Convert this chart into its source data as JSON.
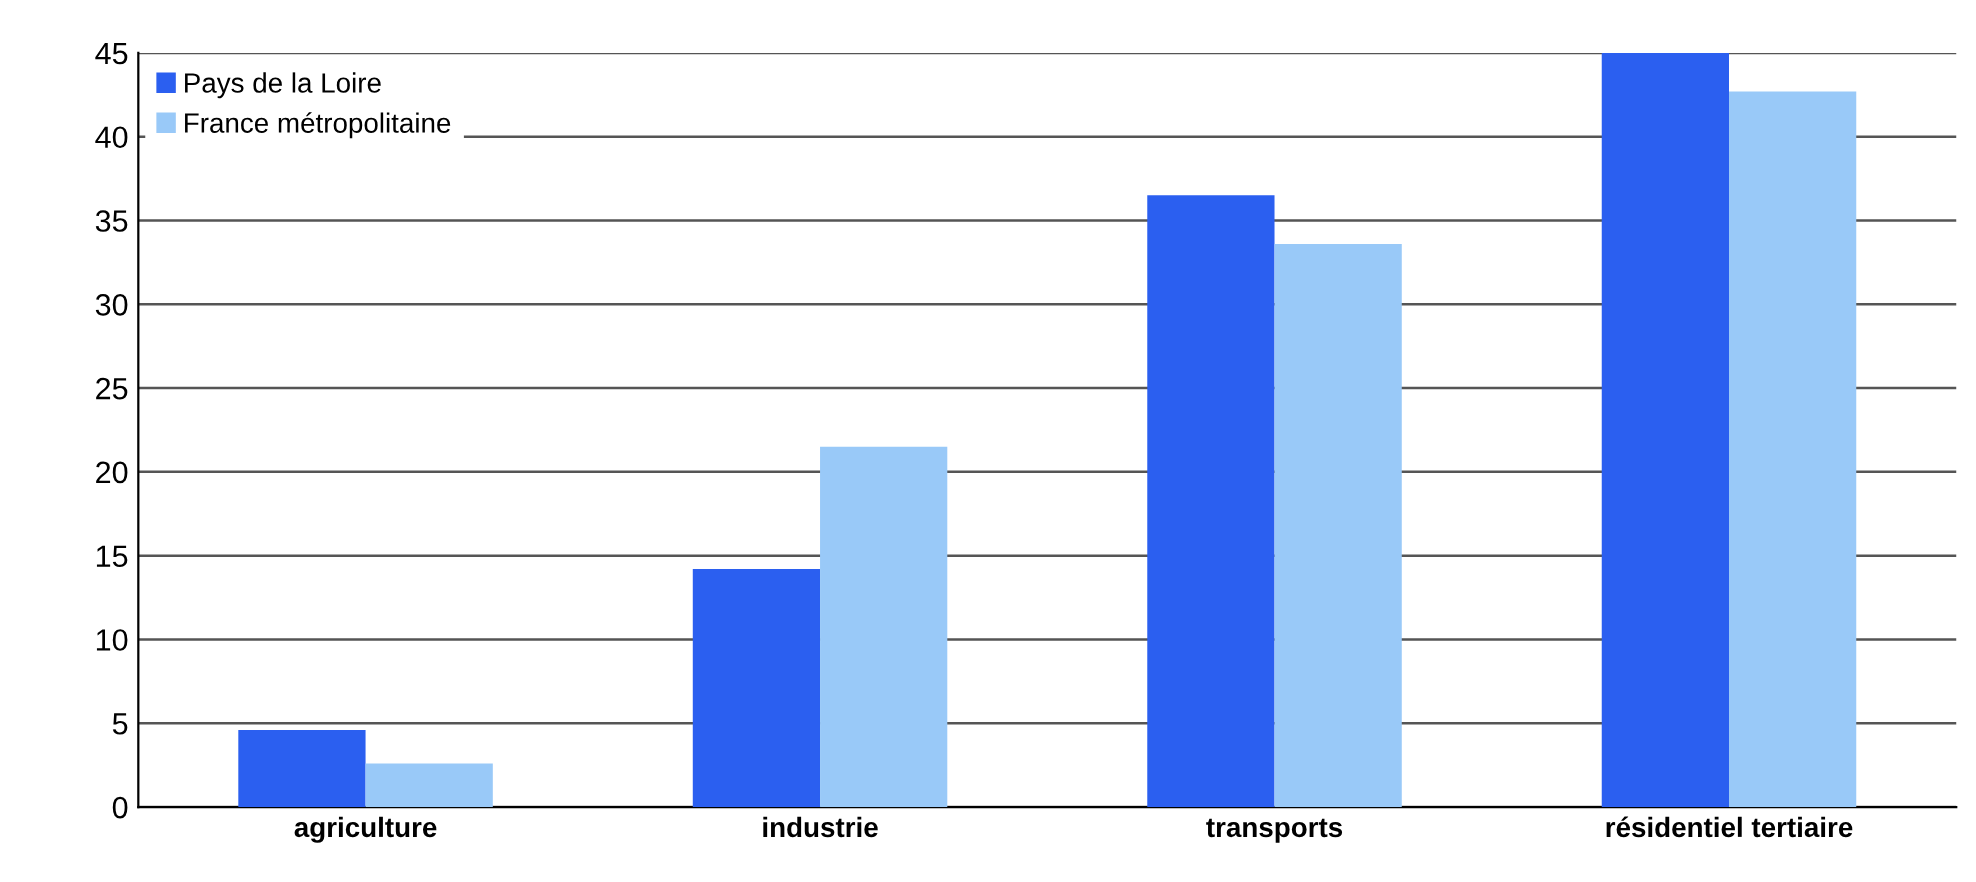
{
  "chart_data": {
    "type": "bar",
    "categories": [
      "agriculture",
      "industrie",
      "transports",
      "résidentiel tertiaire"
    ],
    "series": [
      {
        "name": "Pays de la Loire",
        "color": "#2b5ff0",
        "values": [
          4.6,
          14.2,
          36.5,
          45
        ]
      },
      {
        "name": "France métropolitaine",
        "color": "#99c9f8",
        "values": [
          2.6,
          21.5,
          33.6,
          42.7
        ]
      }
    ],
    "ylim": [
      0,
      45
    ],
    "yticks": [
      0,
      5,
      10,
      15,
      20,
      25,
      30,
      35,
      40,
      45
    ],
    "grid": "y",
    "legend": "top left"
  }
}
